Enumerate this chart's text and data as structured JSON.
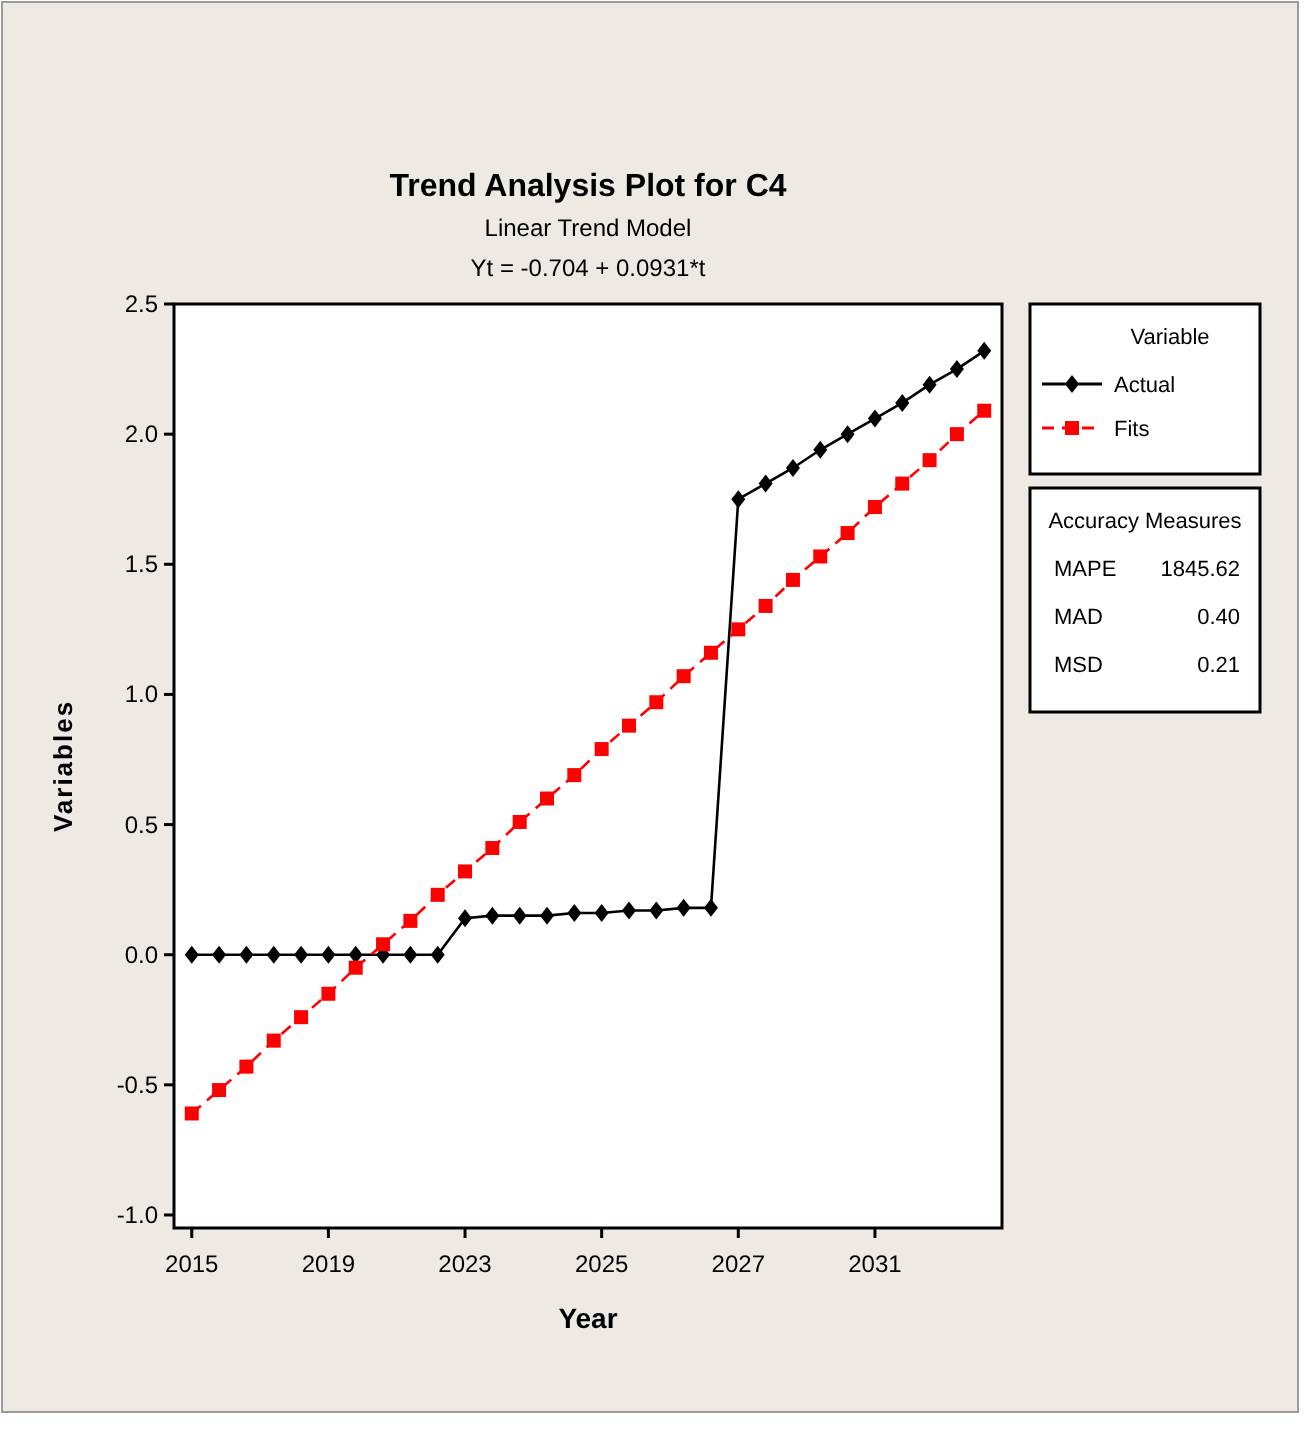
{
  "chart_data": {
    "type": "line",
    "title": "Trend Analysis Plot for C4",
    "subtitle": "Linear Trend Model\nYt = -0.704 + 0.0931*t",
    "xlabel": "Year",
    "ylabel": "Variables",
    "legend_title": "Variable",
    "legend": "top right",
    "categories": [
      "2015",
      null,
      null,
      null,
      null,
      "2019",
      null,
      null,
      null,
      null,
      "2023",
      null,
      null,
      null,
      null,
      "2025",
      null,
      null,
      null,
      null,
      "2027",
      null,
      null,
      null,
      null,
      "2031",
      null,
      null,
      null,
      null
    ],
    "series": [
      {
        "name": "Actual",
        "color": "#000000",
        "marker": "diamond",
        "line_style": "solid",
        "values": [
          0,
          0,
          0,
          0,
          0,
          0,
          0,
          0,
          0,
          0,
          0.14,
          0.15,
          0.15,
          0.15,
          0.16,
          0.16,
          0.17,
          0.17,
          0.18,
          0.18,
          1.75,
          1.81,
          1.87,
          1.94,
          2.0,
          2.06,
          2.12,
          2.19,
          2.25,
          2.32
        ]
      },
      {
        "name": "Fits",
        "color": "#ff0000",
        "marker": "square",
        "line_style": "dashed",
        "values": [
          -0.61,
          -0.52,
          -0.43,
          -0.33,
          -0.24,
          -0.15,
          -0.05,
          0.04,
          0.13,
          0.23,
          0.32,
          0.41,
          0.51,
          0.6,
          0.69,
          0.79,
          0.88,
          0.97,
          1.07,
          1.16,
          1.25,
          1.34,
          1.44,
          1.53,
          1.62,
          1.72,
          1.81,
          1.9,
          2.0,
          2.09
        ]
      }
    ],
    "ylim": [
      -1.05,
      2.5
    ],
    "yticks": [
      {
        "value": -1,
        "label": "-1.0"
      },
      {
        "value": -0.5,
        "label": "-0.5"
      },
      {
        "value": 0,
        "label": "0.0"
      },
      {
        "value": 0.5,
        "label": "0.5"
      },
      {
        "value": 1,
        "label": "1.0"
      },
      {
        "value": 1.5,
        "label": "1.5"
      },
      {
        "value": 2,
        "label": "2.0"
      },
      {
        "value": 2.5,
        "label": "2.5"
      }
    ],
    "grid": false,
    "annotations": [
      "Accuracy Measures",
      "MAPE",
      "1845.62",
      "MAD",
      "0.40",
      "MSD",
      "0.21"
    ]
  }
}
